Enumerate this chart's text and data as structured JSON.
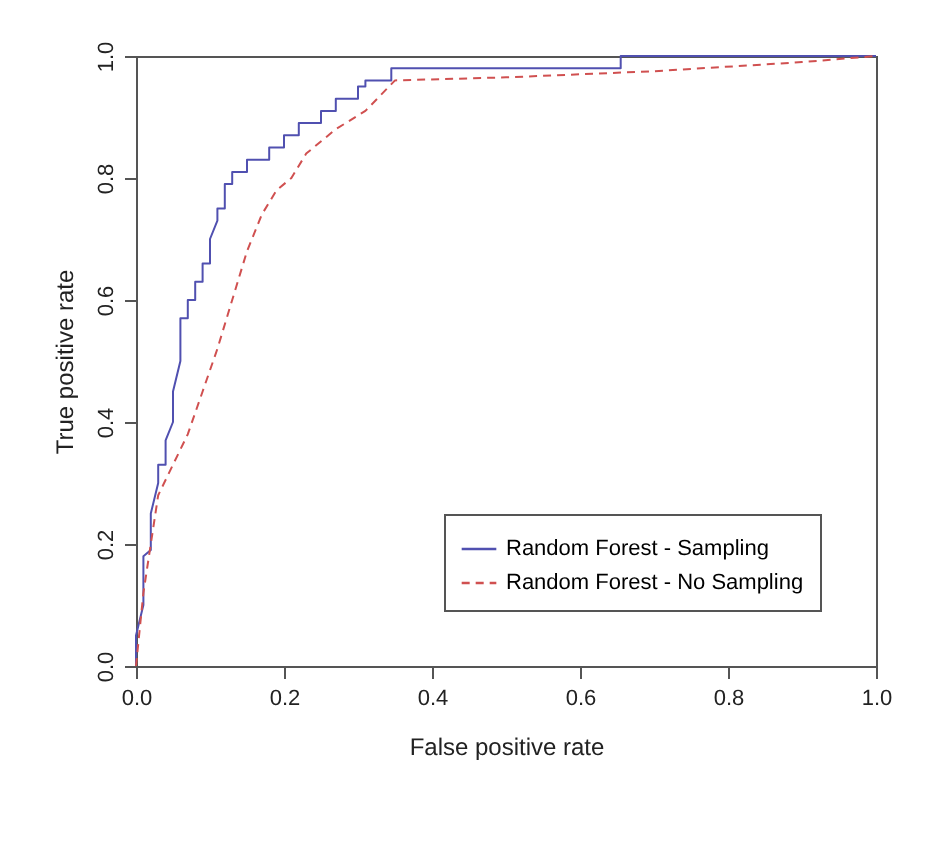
{
  "chart_data": {
    "type": "line",
    "xlabel": "False positive rate",
    "ylabel": "True positive rate",
    "xlim": [
      0,
      1
    ],
    "ylim": [
      0,
      1
    ],
    "xticks": [
      {
        "value": 0,
        "label": "0.0"
      },
      0.2,
      0.4,
      0.6,
      0.8,
      {
        "value": 1,
        "label": "1.0"
      }
    ],
    "yticks": [
      {
        "value": 0,
        "label": "0.0"
      },
      0.2,
      0.4,
      0.6,
      0.8,
      {
        "value": 1,
        "label": "1.0"
      }
    ],
    "grid": false,
    "legend": "bottom right",
    "marker": "none",
    "series": [
      {
        "name": "Random Forest - Sampling",
        "color": "#5050b0",
        "line_style": "solid",
        "x": [
          0,
          0,
          0.01,
          0.01,
          0.02,
          0.02,
          0.03,
          0.03,
          0.04,
          0.04,
          0.05,
          0.05,
          0.06,
          0.06,
          0.07,
          0.07,
          0.08,
          0.08,
          0.09,
          0.09,
          0.1,
          0.1,
          0.11,
          0.11,
          0.12,
          0.12,
          0.13,
          0.13,
          0.15,
          0.15,
          0.18,
          0.18,
          0.2,
          0.2,
          0.22,
          0.22,
          0.25,
          0.25,
          0.27,
          0.27,
          0.3,
          0.3,
          0.31,
          0.31,
          0.345,
          0.345,
          0.655,
          0.655,
          1
        ],
        "values": [
          0,
          0.05,
          0.1,
          0.18,
          0.19,
          0.25,
          0.3,
          0.33,
          0.33,
          0.37,
          0.4,
          0.45,
          0.5,
          0.57,
          0.57,
          0.6,
          0.6,
          0.63,
          0.63,
          0.66,
          0.66,
          0.7,
          0.73,
          0.75,
          0.75,
          0.79,
          0.79,
          0.81,
          0.81,
          0.83,
          0.83,
          0.85,
          0.85,
          0.87,
          0.87,
          0.89,
          0.89,
          0.91,
          0.91,
          0.93,
          0.93,
          0.95,
          0.95,
          0.96,
          0.96,
          0.98,
          0.98,
          1,
          1
        ]
      },
      {
        "name": "Random Forest - No Sampling",
        "color": "#d05050",
        "line_style": "dashed",
        "x": [
          0,
          0.01,
          0.02,
          0.03,
          0.05,
          0.07,
          0.09,
          0.11,
          0.13,
          0.15,
          0.17,
          0.19,
          0.21,
          0.23,
          0.27,
          0.31,
          0.35,
          0.5,
          0.7,
          0.9,
          1
        ],
        "values": [
          0,
          0.12,
          0.2,
          0.28,
          0.33,
          0.38,
          0.45,
          0.52,
          0.6,
          0.68,
          0.74,
          0.78,
          0.8,
          0.84,
          0.88,
          0.91,
          0.96,
          0.965,
          0.975,
          0.99,
          1
        ]
      }
    ]
  }
}
